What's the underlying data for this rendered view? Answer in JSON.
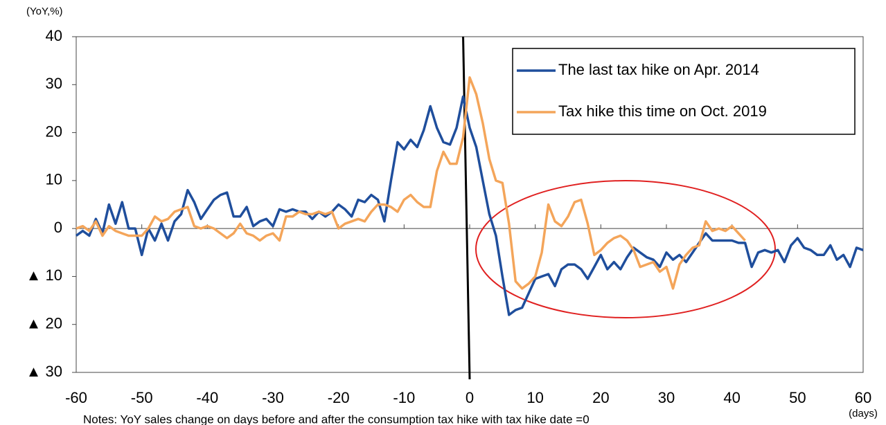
{
  "chart_data": {
    "type": "line",
    "y_label": "(YoY,%)",
    "x_label": "(days)",
    "note": "Notes: YoY sales change on days before and after the consumption tax hike with tax hike date =0",
    "x": [
      -60,
      -59,
      -58,
      -57,
      -56,
      -55,
      -54,
      -53,
      -52,
      -51,
      -50,
      -49,
      -48,
      -47,
      -46,
      -45,
      -44,
      -43,
      -42,
      -41,
      -40,
      -39,
      -38,
      -37,
      -36,
      -35,
      -34,
      -33,
      -32,
      -31,
      -30,
      -29,
      -28,
      -27,
      -26,
      -25,
      -24,
      -23,
      -22,
      -21,
      -20,
      -19,
      -18,
      -17,
      -16,
      -15,
      -14,
      -13,
      -12,
      -11,
      -10,
      -9,
      -8,
      -7,
      -6,
      -5,
      -4,
      -3,
      -2,
      -1,
      0,
      1,
      2,
      3,
      4,
      5,
      6,
      7,
      8,
      9,
      10,
      11,
      12,
      13,
      14,
      15,
      16,
      17,
      18,
      19,
      20,
      21,
      22,
      23,
      24,
      25,
      26,
      27,
      28,
      29,
      30,
      31,
      32,
      33,
      34,
      35,
      36,
      37,
      38,
      39,
      40,
      41,
      42,
      43,
      44,
      45,
      46,
      47,
      48,
      49,
      50,
      51,
      52,
      53,
      54,
      55,
      56,
      57,
      58,
      59,
      60
    ],
    "series": [
      {
        "name": "The last tax hike on Apr. 2014",
        "color": "#1f4e9c",
        "values": [
          -1.5,
          -0.5,
          -1.5,
          2,
          -1,
          5,
          1,
          5.5,
          0,
          0,
          -5.5,
          0,
          -2.5,
          1,
          -2.5,
          1.5,
          3,
          8,
          5.5,
          2,
          4,
          6,
          7,
          7.5,
          2.5,
          2.5,
          4.5,
          0.5,
          1.5,
          2,
          0.5,
          4,
          3.5,
          4,
          3.5,
          3.5,
          2,
          3.5,
          2.5,
          3.5,
          5,
          4,
          2.5,
          6,
          5.5,
          7,
          6,
          1.5,
          10,
          18,
          16.5,
          18.5,
          17,
          20.5,
          25.5,
          21,
          18,
          17.5,
          21,
          27.5,
          21,
          17,
          10,
          3,
          -1.5,
          -10,
          -18,
          -17,
          -16.5,
          -13.5,
          -10.5,
          -10,
          -9.5,
          -12,
          -8.5,
          -7.5,
          -7.5,
          -8.5,
          -10.5,
          -8,
          -5.5,
          -8.5,
          -7,
          -8.5,
          -6,
          -4,
          -5,
          -6,
          -6.5,
          -8,
          -5,
          -6.5,
          -5.5,
          -7,
          -5,
          -3,
          -1,
          -2.5,
          -2.5,
          -2.5,
          -2.5,
          -3,
          -3,
          -8,
          -5,
          -4.5,
          -5,
          -4.5,
          -7,
          -3.5,
          -2,
          -4,
          -4.5,
          -5.5,
          -5.5,
          -3.5,
          -6.5,
          -5.5,
          -8,
          -4,
          -4.5
        ]
      },
      {
        "name": "Tax hike this time on Oct. 2019",
        "color": "#f4a55a",
        "values": [
          0,
          0.5,
          -0.5,
          1.5,
          -1.5,
          0.5,
          -0.5,
          -1,
          -1.5,
          -1.5,
          -1.5,
          0,
          2.5,
          1.5,
          2,
          3.5,
          4,
          4.5,
          0.5,
          0,
          0.5,
          0,
          -1,
          -2,
          -1,
          1,
          -1,
          -1.5,
          -2.5,
          -1.5,
          -1,
          -2.5,
          2.5,
          2.5,
          3.5,
          3,
          3,
          3.5,
          3,
          3.5,
          0,
          1,
          1.5,
          2,
          1.5,
          3.5,
          5,
          5,
          4.5,
          3.5,
          6,
          7,
          5.5,
          4.5,
          4.5,
          12,
          16,
          13.5,
          13.5,
          19,
          31.5,
          28,
          22,
          14.5,
          10,
          9.5,
          1,
          -11,
          -12.5,
          -11.5,
          -10,
          -5,
          5,
          1.5,
          0.5,
          2.5,
          5.5,
          6,
          1,
          -5.5,
          -4.5,
          -3,
          -2,
          -1.5,
          -2.5,
          -4.5,
          -8,
          -7.5,
          -7,
          -9,
          -8,
          -12.5,
          -7.5,
          -5.5,
          -4,
          -3.5,
          1.5,
          -0.5,
          0,
          -0.5,
          0.5,
          -1,
          -2.5,
          null,
          null,
          null,
          null,
          null,
          null,
          null,
          null,
          null,
          null,
          null,
          null,
          null,
          null,
          null,
          null,
          null,
          null
        ]
      }
    ],
    "xlim": [
      -60,
      60
    ],
    "xticks": [
      -60,
      -50,
      -40,
      -30,
      -20,
      -10,
      0,
      10,
      20,
      30,
      40,
      50,
      60
    ],
    "ylim": [
      -30,
      40
    ],
    "yticks": [
      {
        "value": -30,
        "label": "▲ 30"
      },
      {
        "value": -20,
        "label": "▲ 20"
      },
      {
        "value": -10,
        "label": "▲ 10"
      },
      0,
      10,
      20,
      30,
      40
    ],
    "grid": false,
    "legend": "upper right"
  }
}
